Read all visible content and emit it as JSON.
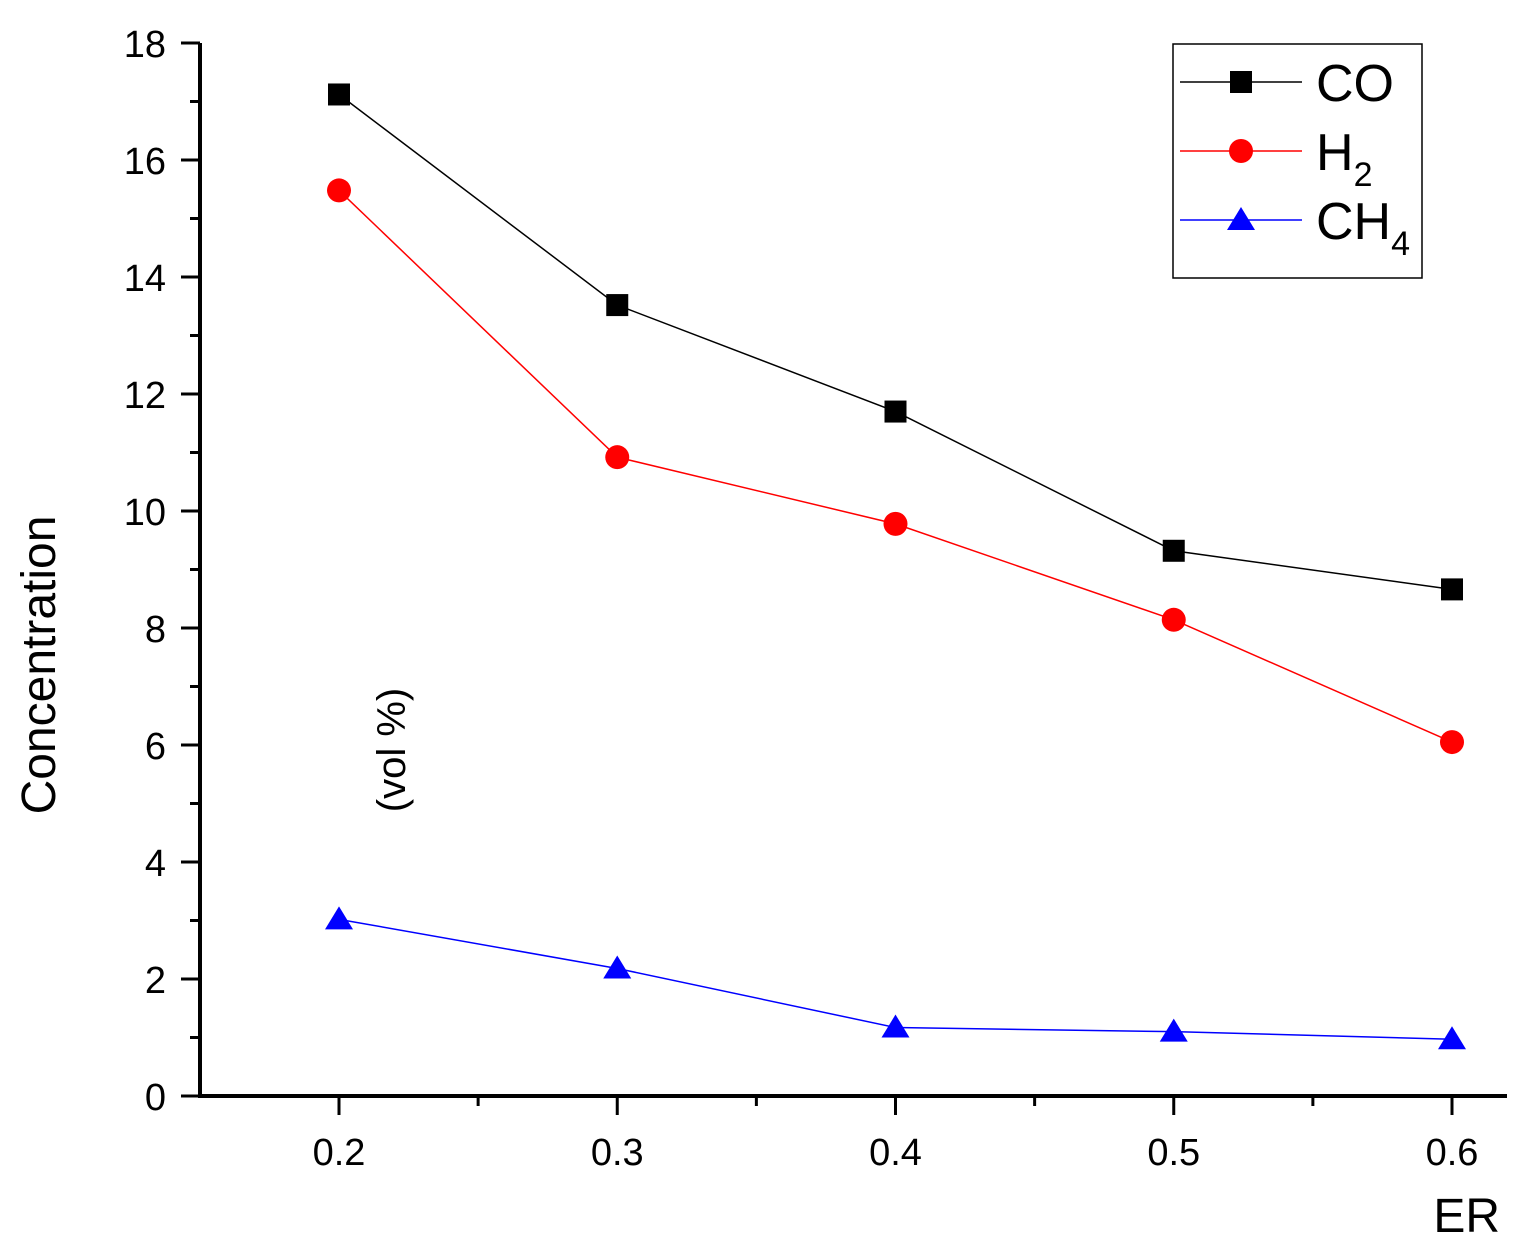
{
  "chart_data": {
    "type": "line",
    "x": [
      0.2,
      0.3,
      0.4,
      0.5,
      0.6
    ],
    "series": [
      {
        "name": "CO",
        "legend_base": "CO",
        "legend_sub": "",
        "color": "#000000",
        "marker": "square",
        "values": [
          17.12,
          13.52,
          11.7,
          9.32,
          8.66
        ]
      },
      {
        "name": "H2",
        "legend_base": "H",
        "legend_sub": "2",
        "color": "#ff0000",
        "marker": "circle",
        "values": [
          15.48,
          10.92,
          9.78,
          8.14,
          6.05
        ]
      },
      {
        "name": "CH4",
        "legend_base": "CH",
        "legend_sub": "4",
        "color": "#0000ff",
        "marker": "triangle",
        "values": [
          3.02,
          2.18,
          1.17,
          1.1,
          0.97
        ]
      }
    ],
    "xlabel": "ER",
    "ylabel": "Concentration",
    "ylabel_unit": "(vol %)",
    "xlim": [
      0.15,
      0.6
    ],
    "ylim": [
      0,
      18
    ],
    "xticks": [
      0.2,
      0.3,
      0.4,
      0.5,
      0.6
    ],
    "xtick_labels": [
      "0.2",
      "0.3",
      "0.4",
      "0.5",
      "0.6"
    ],
    "yticks": [
      0,
      2,
      4,
      6,
      8,
      10,
      12,
      14,
      16,
      18
    ],
    "ytick_labels": [
      "0",
      "2",
      "4",
      "6",
      "8",
      "10",
      "12",
      "14",
      "16",
      "18"
    ],
    "grid": false,
    "legend_position": "top-right"
  }
}
